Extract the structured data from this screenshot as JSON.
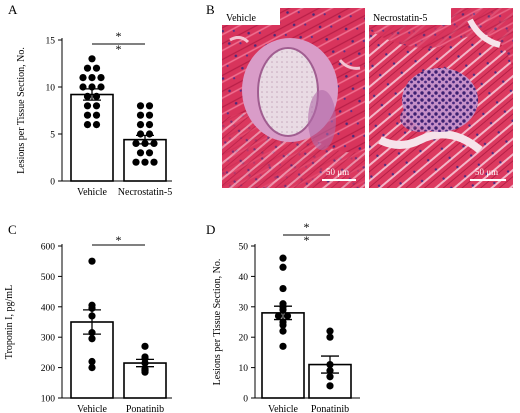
{
  "chart_data": [
    {
      "panel": "A",
      "type": "bar",
      "categories": [
        "Vehicle",
        "Necrostatin-5"
      ],
      "values": [
        9.2,
        4.4
      ],
      "errors": [
        0.6,
        0.45
      ],
      "points": [
        [
          13,
          12,
          12,
          11,
          11,
          11,
          10,
          10,
          10,
          9,
          9,
          8,
          8,
          7,
          7,
          6,
          6
        ],
        [
          8,
          8,
          7,
          7,
          6,
          6,
          5,
          5,
          4,
          4,
          4,
          3,
          3,
          2,
          2,
          2
        ]
      ],
      "xlabel": "",
      "ylabel": "Lesions per Tissue Section, No.",
      "yticks": [
        0,
        5,
        10,
        15
      ],
      "ylim": [
        0,
        15
      ],
      "significance": "**"
    },
    {
      "panel": "C",
      "type": "bar",
      "categories": [
        "Vehicle",
        "Ponatinib"
      ],
      "values": [
        350,
        215
      ],
      "errors": [
        40,
        12
      ],
      "points": [
        [
          550,
          405,
          395,
          370,
          315,
          295,
          220,
          200
        ],
        [
          270,
          235,
          230,
          215,
          195,
          190,
          185
        ]
      ],
      "xlabel": "",
      "ylabel": "Troponin I, pg/mL",
      "yticks": [
        100,
        200,
        300,
        400,
        500,
        600
      ],
      "ylim": [
        100,
        600
      ],
      "significance": "*"
    },
    {
      "panel": "D",
      "type": "bar",
      "categories": [
        "Vehicle",
        "Ponatinib"
      ],
      "values": [
        28,
        11
      ],
      "errors": [
        2.2,
        2.8
      ],
      "points": [
        [
          46,
          43,
          36,
          31,
          30,
          29,
          27,
          27,
          25,
          24,
          22,
          17
        ],
        [
          22,
          20,
          11,
          9,
          7,
          4
        ]
      ],
      "xlabel": "",
      "ylabel": "Lesions per Tissue Section, No.",
      "yticks": [
        0,
        10,
        20,
        30,
        40,
        50
      ],
      "ylim": [
        0,
        50
      ],
      "significance": "**"
    }
  ],
  "panel_letters": {
    "a": "A",
    "b": "B",
    "c": "C",
    "d": "D"
  },
  "micrographs": {
    "left_label": "Vehicle",
    "right_label": "Necrostatin-5",
    "scale_left": "50 μm",
    "scale_right": "50 μm",
    "tissue_color": "#d8345c"
  }
}
